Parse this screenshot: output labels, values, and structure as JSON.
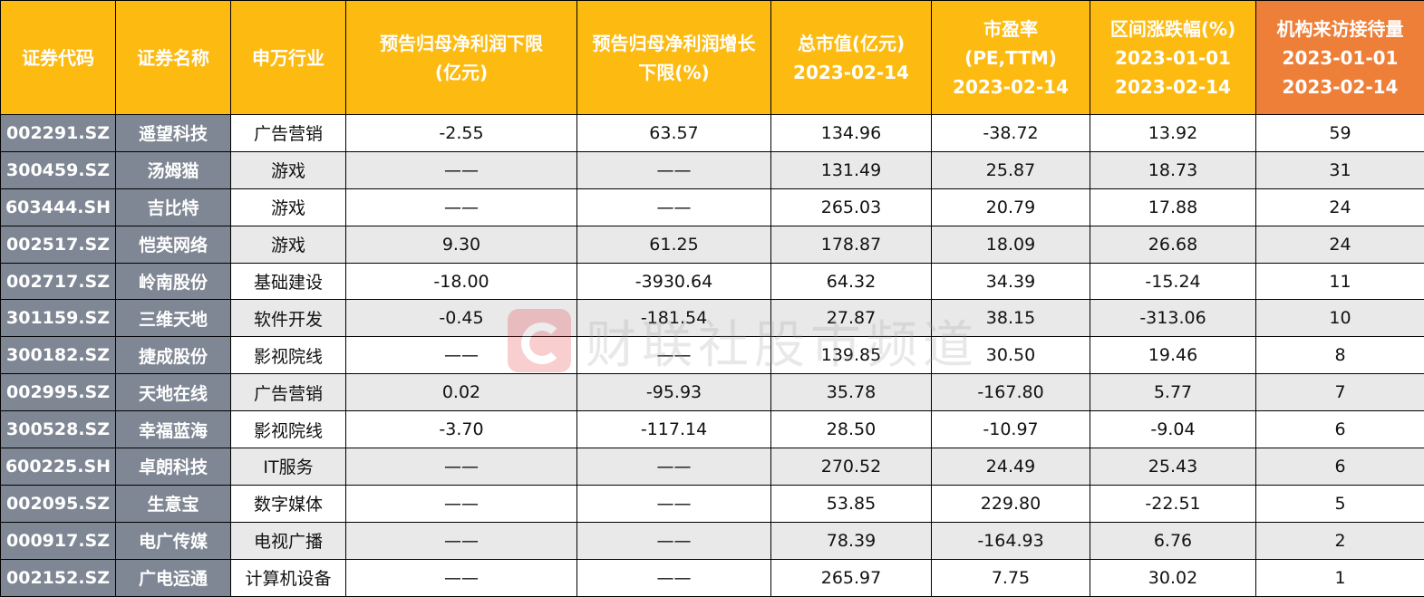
{
  "table": {
    "headers": [
      [
        "证券代码"
      ],
      [
        "证券名称"
      ],
      [
        "申万行业"
      ],
      [
        "预告归母净利润下限",
        "(亿元)"
      ],
      [
        "预告归母净利润增长",
        "下限(%)"
      ],
      [
        "总市值(亿元)",
        "2023-02-14"
      ],
      [
        "市盈率",
        "(PE,TTM)",
        "2023-02-14"
      ],
      [
        "区间涨跌幅(%)",
        "2023-01-01",
        "2023-02-14"
      ],
      [
        "机构来访接待量",
        "2023-01-01",
        "2023-02-14"
      ]
    ],
    "rows": [
      [
        "002291.SZ",
        "遥望科技",
        "广告营销",
        "-2.55",
        "63.57",
        "134.96",
        "-38.72",
        "13.92",
        "59"
      ],
      [
        "300459.SZ",
        "汤姆猫",
        "游戏",
        "——",
        "——",
        "131.49",
        "25.87",
        "18.73",
        "31"
      ],
      [
        "603444.SH",
        "吉比特",
        "游戏",
        "——",
        "——",
        "265.03",
        "20.79",
        "17.88",
        "24"
      ],
      [
        "002517.SZ",
        "恺英网络",
        "游戏",
        "9.30",
        "61.25",
        "178.87",
        "18.09",
        "26.68",
        "24"
      ],
      [
        "002717.SZ",
        "岭南股份",
        "基础建设",
        "-18.00",
        "-3930.64",
        "64.32",
        "34.39",
        "-15.24",
        "11"
      ],
      [
        "301159.SZ",
        "三维天地",
        "软件开发",
        "-0.45",
        "-181.54",
        "27.87",
        "38.15",
        "-313.06",
        "10"
      ],
      [
        "300182.SZ",
        "捷成股份",
        "影视院线",
        "——",
        "——",
        "139.85",
        "30.50",
        "19.46",
        "8"
      ],
      [
        "002995.SZ",
        "天地在线",
        "广告营销",
        "0.02",
        "-95.93",
        "35.78",
        "-167.80",
        "5.77",
        "7"
      ],
      [
        "300528.SZ",
        "幸福蓝海",
        "影视院线",
        "-3.70",
        "-117.14",
        "28.50",
        "-10.97",
        "-9.04",
        "6"
      ],
      [
        "600225.SH",
        "卓朗科技",
        "IT服务",
        "——",
        "——",
        "270.52",
        "24.49",
        "25.43",
        "6"
      ],
      [
        "002095.SZ",
        "生意宝",
        "数字媒体",
        "——",
        "——",
        "53.85",
        "229.80",
        "-22.51",
        "5"
      ],
      [
        "000917.SZ",
        "电广传媒",
        "电视广播",
        "——",
        "——",
        "78.39",
        "-164.93",
        "6.76",
        "2"
      ],
      [
        "002152.SZ",
        "广电运通",
        "计算机设备",
        "——",
        "——",
        "265.97",
        "7.75",
        "30.02",
        "1"
      ]
    ]
  },
  "watermark": {
    "text": "财联社股市频道",
    "logo_icon": "cls-logo-icon"
  },
  "colors": {
    "header": "#FDBA11",
    "header_accent": "#EE7F38",
    "id_columns": "#7F8794",
    "stripe": "#E9E9E9"
  }
}
